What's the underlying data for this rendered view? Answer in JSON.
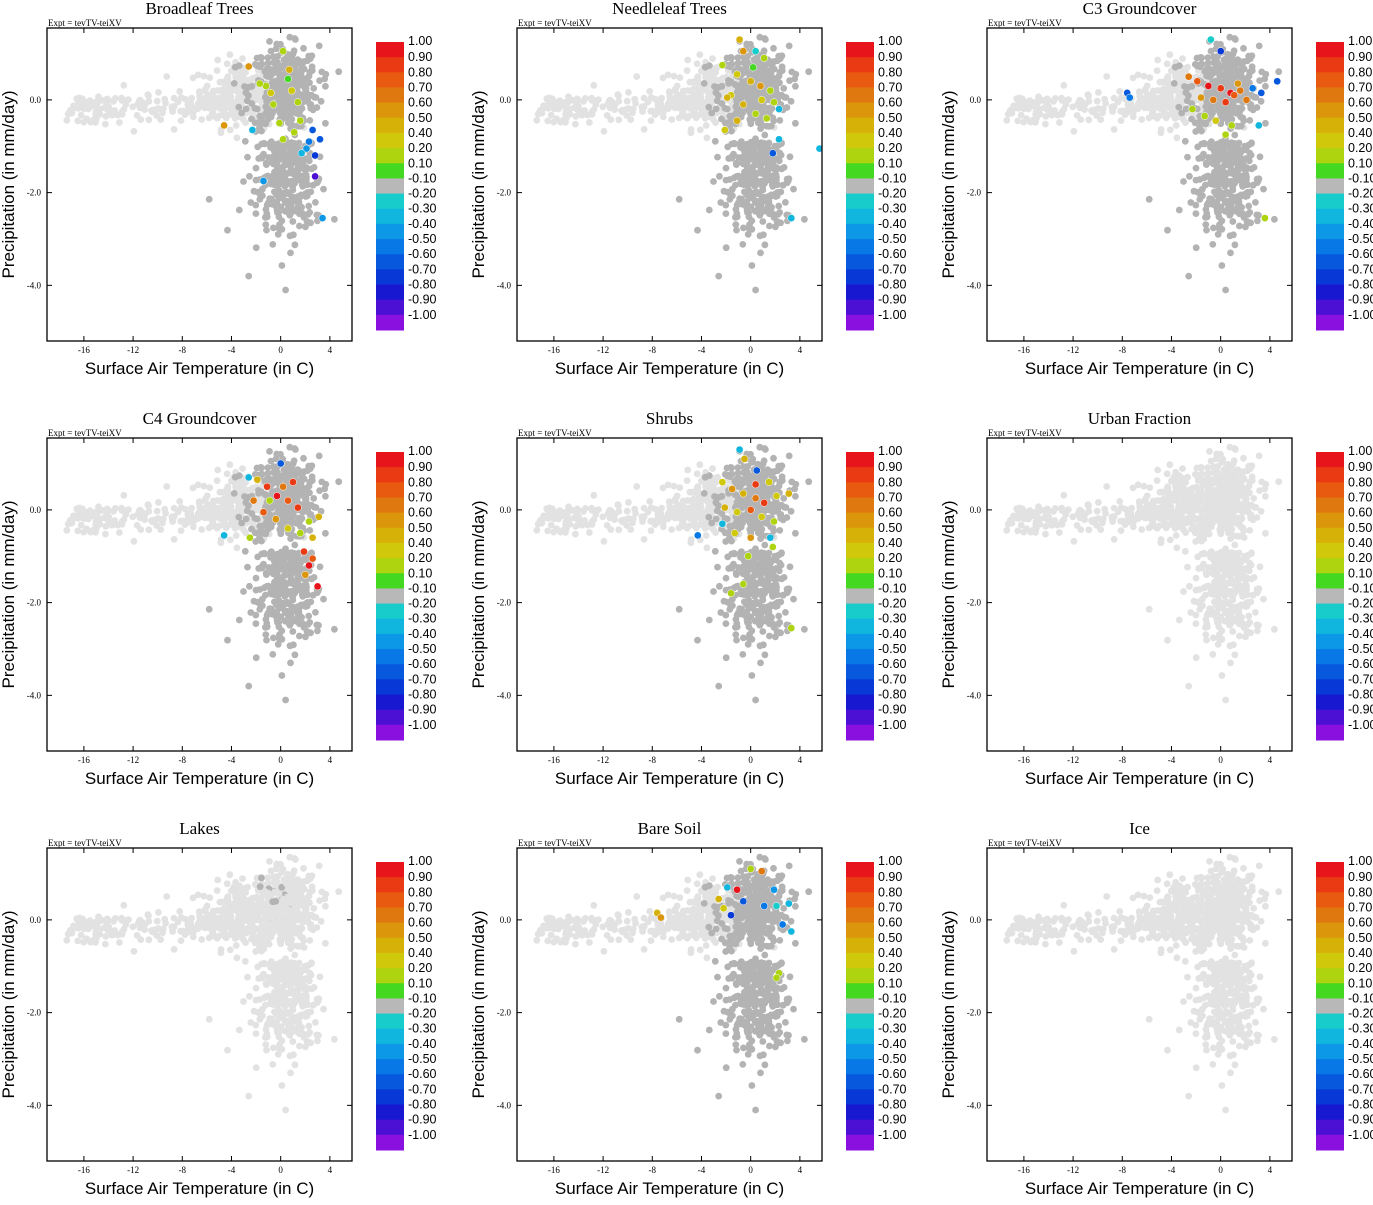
{
  "colorbar": {
    "labels": [
      "1.00",
      "0.90",
      "0.80",
      "0.70",
      "0.60",
      "0.50",
      "0.40",
      "0.20",
      "0.10",
      "-0.10",
      "-0.20",
      "-0.30",
      "-0.40",
      "-0.50",
      "-0.60",
      "-0.70",
      "-0.80",
      "-0.90",
      "-1.00"
    ],
    "colors": [
      "#e8141c",
      "#ea3a14",
      "#e85a10",
      "#e07810",
      "#dc960c",
      "#d6b208",
      "#d0c80a",
      "#aed410",
      "#44d820",
      "#b8b8b8",
      "#18cccc",
      "#10b6de",
      "#0c98e6",
      "#0878e6",
      "#0858de",
      "#0838d6",
      "#1818d0",
      "#4c10d4",
      "#8a10e0"
    ]
  },
  "chart_data": [
    {
      "type": "scatter",
      "title": "Broadleaf Trees",
      "expt": "Expt = tevTV-teiXV",
      "xlabel": "Surface Air Temperature (in C)",
      "ylabel": "Precipitation (in mm/day)",
      "xlim": [
        -19,
        5.8
      ],
      "ylim": [
        -5.2,
        1.55
      ],
      "xticks": [
        -16,
        -12,
        -8,
        -4,
        0,
        4
      ],
      "yticks": [
        0.0,
        -2.0,
        -4.0
      ],
      "ytick_labels": [
        "0.0",
        "-2.0",
        "-4.0"
      ],
      "colored_points": [
        [
          -2.6,
          0.72,
          0.6
        ],
        [
          -4.6,
          -0.55,
          0.6
        ],
        [
          0.2,
          1.05,
          0.2
        ],
        [
          0.7,
          0.65,
          0.5
        ],
        [
          -1.2,
          0.3,
          0.2
        ],
        [
          -0.6,
          -0.1,
          0.2
        ],
        [
          0.9,
          0.2,
          0.4
        ],
        [
          1.4,
          -0.05,
          0.2
        ],
        [
          -0.1,
          -0.5,
          0.2
        ],
        [
          1.1,
          -0.7,
          0.2
        ],
        [
          0.2,
          -0.85,
          0.2
        ],
        [
          1.6,
          -0.45,
          0.2
        ],
        [
          2.3,
          -0.9,
          -0.5
        ],
        [
          2.6,
          -0.65,
          -0.6
        ],
        [
          2.8,
          -1.2,
          -0.7
        ],
        [
          3.2,
          -0.85,
          -0.6
        ],
        [
          2.1,
          -1.05,
          -0.4
        ],
        [
          1.7,
          -1.15,
          -0.3
        ],
        [
          2.8,
          -1.65,
          -0.9
        ],
        [
          -1.4,
          -1.75,
          -0.4
        ],
        [
          3.4,
          -2.55,
          -0.4
        ],
        [
          -2.3,
          -0.65,
          -0.3
        ],
        [
          -1.7,
          0.35,
          0.2
        ],
        [
          0.6,
          0.45,
          0.1
        ],
        [
          -0.8,
          0.15,
          0.4
        ]
      ]
    },
    {
      "type": "scatter",
      "title": "Needleleaf Trees",
      "expt": "",
      "xlabel": "Surface Air Temperature (in C)",
      "ylabel": "Precipitation (in mm/day)",
      "xlim": [
        -19,
        5.8
      ],
      "ylim": [
        -5.2,
        1.55
      ],
      "xticks": [
        -16,
        -12,
        -8,
        -4,
        0,
        4
      ],
      "yticks": [
        0.0,
        -2.0,
        -4.0
      ],
      "ytick_labels": [
        "0.0",
        "-2.0",
        "-4.0"
      ],
      "colored_points": [
        [
          -0.9,
          1.3,
          0.5
        ],
        [
          -0.6,
          1.05,
          0.6
        ],
        [
          0.4,
          1.05,
          -0.2
        ],
        [
          1.1,
          0.9,
          0.3
        ],
        [
          -2.3,
          0.75,
          0.2
        ],
        [
          -1.1,
          0.55,
          0.4
        ],
        [
          0.0,
          0.4,
          0.5
        ],
        [
          0.8,
          0.3,
          0.6
        ],
        [
          1.6,
          0.2,
          0.3
        ],
        [
          -1.6,
          0.1,
          0.4
        ],
        [
          -0.6,
          -0.1,
          0.5
        ],
        [
          0.4,
          -0.3,
          0.3
        ],
        [
          1.3,
          -0.4,
          0.2
        ],
        [
          2.3,
          -0.2,
          -0.3
        ],
        [
          -2.1,
          -0.65,
          0.4
        ],
        [
          -1.1,
          -0.45,
          0.5
        ],
        [
          1.8,
          -1.15,
          -0.6
        ],
        [
          2.3,
          -0.85,
          -0.3
        ],
        [
          5.6,
          -1.05,
          -0.3
        ],
        [
          3.3,
          -2.55,
          -0.3
        ],
        [
          -1.9,
          0.05,
          0.5
        ],
        [
          0.2,
          0.7,
          0.1
        ],
        [
          1.9,
          -0.05,
          0.2
        ],
        [
          0.9,
          0.0,
          0.4
        ]
      ]
    },
    {
      "type": "scatter",
      "title": "C3 Groundcover",
      "expt": "Expt = tevTV-teiXV",
      "xlabel": "Surface Air Temperature (in C)",
      "ylabel": "Precipitation (in mm/day)",
      "xlim": [
        -19,
        5.8
      ],
      "ylim": [
        -5.2,
        1.55
      ],
      "xticks": [
        -16,
        -12,
        -8,
        -4,
        0,
        4
      ],
      "yticks": [
        0.0,
        -2.0,
        -4.0
      ],
      "ytick_labels": [
        "0.0",
        "-2.0",
        "-4.0"
      ],
      "colored_points": [
        [
          -0.8,
          1.3,
          -0.2
        ],
        [
          0.0,
          1.05,
          -0.7
        ],
        [
          -2.6,
          0.5,
          0.7
        ],
        [
          -1.9,
          0.4,
          0.8
        ],
        [
          -1.0,
          0.3,
          1.0
        ],
        [
          0.0,
          0.25,
          0.9
        ],
        [
          0.8,
          0.15,
          1.0
        ],
        [
          1.6,
          0.2,
          0.7
        ],
        [
          -1.6,
          0.05,
          0.6
        ],
        [
          -0.6,
          0.0,
          0.7
        ],
        [
          0.4,
          -0.05,
          0.9
        ],
        [
          1.1,
          0.1,
          0.8
        ],
        [
          -2.3,
          -0.2,
          0.2
        ],
        [
          -1.3,
          -0.35,
          0.2
        ],
        [
          -0.4,
          -0.45,
          0.4
        ],
        [
          0.9,
          -0.55,
          0.2
        ],
        [
          2.6,
          0.25,
          -0.5
        ],
        [
          3.3,
          0.15,
          -0.6
        ],
        [
          4.6,
          0.4,
          -0.6
        ],
        [
          3.1,
          -0.55,
          -0.3
        ],
        [
          -7.6,
          0.15,
          -0.6
        ],
        [
          -7.4,
          0.05,
          -0.5
        ],
        [
          3.6,
          -2.55,
          0.2
        ],
        [
          0.4,
          -0.75,
          0.2
        ],
        [
          1.4,
          0.35,
          0.6
        ],
        [
          2.1,
          0.0,
          0.7
        ]
      ]
    },
    {
      "type": "scatter",
      "title": "C4 Groundcover",
      "expt": "Expt = tevTV-teiXV",
      "xlabel": "Surface Air Temperature (in C)",
      "ylabel": "Precipitation (in mm/day)",
      "xlim": [
        -19,
        5.8
      ],
      "ylim": [
        -5.2,
        1.55
      ],
      "xticks": [
        -16,
        -12,
        -8,
        -4,
        0,
        4
      ],
      "yticks": [
        0.0,
        -2.0,
        -4.0
      ],
      "ytick_labels": [
        "0.0",
        "-2.0",
        "-4.0"
      ],
      "colored_points": [
        [
          -2.6,
          0.7,
          -0.3
        ],
        [
          -1.9,
          0.65,
          0.5
        ],
        [
          0.0,
          1.0,
          -0.6
        ],
        [
          -1.1,
          0.5,
          0.9
        ],
        [
          -0.3,
          0.3,
          1.0
        ],
        [
          0.6,
          0.2,
          0.8
        ],
        [
          1.4,
          0.05,
          0.9
        ],
        [
          -2.2,
          0.2,
          0.7
        ],
        [
          -1.4,
          -0.05,
          0.8
        ],
        [
          -0.4,
          -0.2,
          0.6
        ],
        [
          0.6,
          -0.4,
          0.4
        ],
        [
          1.6,
          -0.5,
          0.3
        ],
        [
          2.3,
          -0.25,
          0.2
        ],
        [
          3.1,
          -0.15,
          0.5
        ],
        [
          1.9,
          -0.9,
          0.9
        ],
        [
          2.3,
          -1.2,
          1.0
        ],
        [
          2.6,
          -1.05,
          0.8
        ],
        [
          2.0,
          -1.4,
          0.6
        ],
        [
          3.0,
          -1.65,
          1.0
        ],
        [
          -4.6,
          -0.55,
          -0.3
        ],
        [
          -2.5,
          -0.6,
          0.2
        ],
        [
          1.0,
          0.6,
          0.9
        ],
        [
          0.2,
          0.5,
          0.7
        ],
        [
          -0.9,
          0.2,
          0.2
        ],
        [
          2.6,
          -0.6,
          0.5
        ]
      ]
    },
    {
      "type": "scatter",
      "title": "Shrubs",
      "expt": "Expt = tevTV-teiXV",
      "xlabel": "Surface Air Temperature (in C)",
      "ylabel": "Precipitation (in mm/day)",
      "xlim": [
        -19,
        5.8
      ],
      "ylim": [
        -5.2,
        1.55
      ],
      "xticks": [
        -16,
        -12,
        -8,
        -4,
        0,
        4
      ],
      "yticks": [
        0.0,
        -2.0,
        -4.0
      ],
      "ytick_labels": [
        "0.0",
        "-2.0",
        "-4.0"
      ],
      "colored_points": [
        [
          -0.9,
          1.3,
          -0.3
        ],
        [
          -0.5,
          1.1,
          0.5
        ],
        [
          0.5,
          0.85,
          -0.6
        ],
        [
          1.5,
          0.6,
          0.4
        ],
        [
          -2.3,
          0.6,
          0.4
        ],
        [
          -1.5,
          0.45,
          0.6
        ],
        [
          -0.6,
          0.35,
          0.5
        ],
        [
          0.4,
          0.25,
          0.7
        ],
        [
          1.1,
          0.15,
          0.9
        ],
        [
          2.1,
          0.3,
          0.4
        ],
        [
          3.1,
          0.35,
          0.5
        ],
        [
          -2.1,
          0.05,
          0.5
        ],
        [
          -1.1,
          -0.05,
          0.4
        ],
        [
          0.0,
          0.0,
          0.8
        ],
        [
          0.9,
          -0.15,
          0.4
        ],
        [
          1.9,
          -0.25,
          0.3
        ],
        [
          -2.3,
          -0.3,
          -0.3
        ],
        [
          -1.3,
          -0.5,
          0.4
        ],
        [
          0.0,
          -0.6,
          0.6
        ],
        [
          1.6,
          -0.6,
          -0.3
        ],
        [
          -4.3,
          -0.55,
          -0.5
        ],
        [
          -0.2,
          -1.0,
          0.3
        ],
        [
          -0.6,
          -1.6,
          0.2
        ],
        [
          -1.6,
          -1.8,
          0.2
        ],
        [
          3.3,
          -2.55,
          0.3
        ],
        [
          0.4,
          0.55,
          0.9
        ],
        [
          1.8,
          -0.8,
          0.2
        ]
      ]
    },
    {
      "type": "scatter",
      "title": "Urban Fraction",
      "expt": "Expt = tevTV-teiXV",
      "xlabel": "Surface Air Temperature (in C)",
      "ylabel": "Precipitation (in mm/day)",
      "xlim": [
        -19,
        5.8
      ],
      "ylim": [
        -5.2,
        1.55
      ],
      "xticks": [
        -16,
        -12,
        -8,
        -4,
        0,
        4
      ],
      "yticks": [
        0.0,
        -2.0,
        -4.0
      ],
      "ytick_labels": [
        "0.0",
        "-2.0",
        "-4.0"
      ],
      "colored_points": []
    },
    {
      "type": "scatter",
      "title": "Lakes",
      "expt": "Expt = tevTV-teiXV",
      "xlabel": "Surface Air Temperature (in C)",
      "ylabel": "Precipitation (in mm/day)",
      "xlim": [
        -19,
        5.8
      ],
      "ylim": [
        -5.2,
        1.55
      ],
      "xticks": [
        -16,
        -12,
        -8,
        -4,
        0,
        4
      ],
      "yticks": [
        0.0,
        -2.0,
        -4.0
      ],
      "ytick_labels": [
        "0.0",
        "-2.0",
        "-4.0"
      ],
      "colored_points": []
    },
    {
      "type": "scatter",
      "title": "Bare Soil",
      "expt": "Expt = tevTV-teiXV",
      "xlabel": "Surface Air Temperature (in C)",
      "ylabel": "Precipitation (in mm/day)",
      "xlim": [
        -19,
        5.8
      ],
      "ylim": [
        -5.2,
        1.55
      ],
      "xticks": [
        -16,
        -12,
        -8,
        -4,
        0,
        4
      ],
      "yticks": [
        0.0,
        -2.0,
        -4.0
      ],
      "ytick_labels": [
        "0.0",
        "-2.0",
        "-4.0"
      ],
      "colored_points": [
        [
          -7.6,
          0.15,
          0.5
        ],
        [
          -7.3,
          0.05,
          0.6
        ],
        [
          -2.6,
          0.45,
          0.5
        ],
        [
          -1.9,
          0.7,
          -0.3
        ],
        [
          -1.1,
          0.65,
          1.0
        ],
        [
          0.0,
          1.1,
          0.2
        ],
        [
          0.9,
          1.05,
          0.7
        ],
        [
          1.9,
          0.65,
          -0.4
        ],
        [
          -0.6,
          0.4,
          -0.6
        ],
        [
          1.1,
          0.3,
          -0.5
        ],
        [
          2.1,
          0.3,
          -0.2
        ],
        [
          3.1,
          0.35,
          -0.3
        ],
        [
          -1.6,
          0.1,
          -0.7
        ],
        [
          2.6,
          -0.1,
          -0.5
        ],
        [
          3.3,
          -0.25,
          -0.3
        ],
        [
          2.3,
          -1.15,
          0.2
        ],
        [
          2.1,
          -1.25,
          0.3
        ],
        [
          -2.2,
          0.25,
          0.4
        ]
      ]
    },
    {
      "type": "scatter",
      "title": "Ice",
      "expt": "Expt = tevTV-teiXV",
      "xlabel": "Surface Air Temperature (in C)",
      "ylabel": "Precipitation (in mm/day)",
      "xlim": [
        -19,
        5.8
      ],
      "ylim": [
        -5.2,
        1.55
      ],
      "xticks": [
        -16,
        -12,
        -8,
        -4,
        0,
        4
      ],
      "yticks": [
        0.0,
        -2.0,
        -4.0
      ],
      "ytick_labels": [
        "0.0",
        "-2.0",
        "-4.0"
      ],
      "colored_points": []
    }
  ]
}
